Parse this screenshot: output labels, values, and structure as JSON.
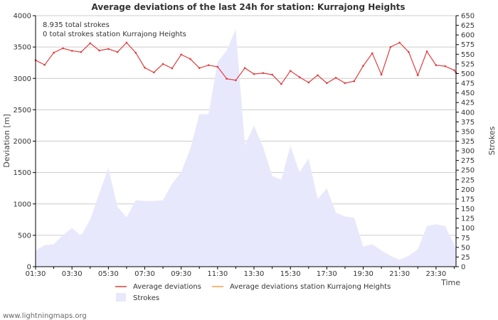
{
  "chart_data": {
    "type": "line",
    "title": "Average deviations of the last 24h for station: Kurrajong Heights",
    "info_lines": [
      "8.935 total strokes",
      "0 total strokes station Kurrajong Heights"
    ],
    "xlabel": "Time",
    "ylabel_left": "Deviation  [m]",
    "ylabel_right": "Strokes",
    "x_ticks": [
      "01:30",
      "03:30",
      "05:30",
      "07:30",
      "09:30",
      "11:30",
      "13:30",
      "15:30",
      "17:30",
      "19:30",
      "21:30",
      "23:30"
    ],
    "x_range_hours": [
      0,
      23.1
    ],
    "ylim_left": [
      0,
      4000
    ],
    "yticks_left": [
      0,
      500,
      1000,
      1500,
      2000,
      2500,
      3000,
      3500,
      4000
    ],
    "ylim_right": [
      0,
      650
    ],
    "yticks_right": [
      0,
      25,
      50,
      75,
      100,
      125,
      150,
      175,
      200,
      225,
      250,
      275,
      300,
      325,
      350,
      375,
      400,
      425,
      450,
      475,
      500,
      525,
      550,
      575,
      600,
      625,
      650
    ],
    "grid": true,
    "legend_position": "bottom",
    "colors": {
      "deviation": "#e03c3c",
      "station": "#f0a050",
      "strokes_fill": "#e8e8fc",
      "grid": "#cccccc",
      "axis": "#000000"
    },
    "series": [
      {
        "name": "Average deviations",
        "axis": "left",
        "style": "line-markers",
        "x": [
          0,
          0.5,
          1,
          1.5,
          2,
          2.5,
          3,
          3.5,
          4,
          4.5,
          5,
          5.5,
          6,
          6.5,
          7,
          7.5,
          8,
          8.5,
          9,
          9.5,
          10,
          10.5,
          11,
          11.5,
          12,
          12.5,
          13,
          13.5,
          14,
          14.5,
          15,
          15.5,
          16,
          16.5,
          17,
          17.5,
          18,
          18.5,
          19,
          19.5,
          20,
          20.5,
          21,
          21.5,
          22,
          22.5,
          23,
          23.1
        ],
        "values": [
          3290,
          3215,
          3410,
          3480,
          3440,
          3420,
          3560,
          3445,
          3470,
          3420,
          3570,
          3410,
          3170,
          3095,
          3230,
          3160,
          3380,
          3310,
          3165,
          3210,
          3185,
          2995,
          2970,
          3165,
          3070,
          3085,
          3060,
          2910,
          3120,
          3020,
          2935,
          3050,
          2925,
          3010,
          2925,
          2955,
          3200,
          3400,
          3060,
          3500,
          3570,
          3420,
          3050,
          3430,
          3210,
          3195,
          3130,
          3090
        ]
      },
      {
        "name": "Average deviations station Kurrajong Heights",
        "axis": "left",
        "style": "line",
        "x": [],
        "values": []
      },
      {
        "name": "Strokes",
        "axis": "right",
        "style": "area",
        "x": [
          0,
          0.5,
          1,
          1.5,
          2,
          2.5,
          3,
          3.5,
          4,
          4.5,
          5,
          5.5,
          6,
          6.5,
          7,
          7.5,
          8,
          8.5,
          9,
          9.5,
          10,
          10.5,
          11,
          11.5,
          12,
          12.5,
          13,
          13.5,
          14,
          14.5,
          15,
          15.5,
          16,
          16.5,
          17,
          17.5,
          18,
          18.5,
          19,
          19.5,
          20,
          20.5,
          21,
          21.5,
          22,
          22.5,
          23,
          23.1
        ],
        "values": [
          42,
          56,
          58,
          82,
          100,
          80,
          122,
          190,
          255,
          155,
          128,
          172,
          170,
          170,
          172,
          215,
          245,
          305,
          395,
          395,
          530,
          560,
          615,
          315,
          365,
          310,
          235,
          225,
          313,
          245,
          280,
          175,
          203,
          140,
          130,
          127,
          52,
          58,
          42,
          28,
          18,
          28,
          45,
          105,
          110,
          105,
          58,
          42
        ]
      }
    ]
  },
  "credit": "www.lightningmaps.org"
}
